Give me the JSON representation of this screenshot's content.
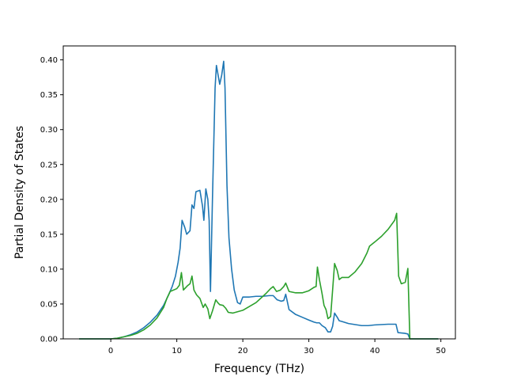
{
  "chart_data": {
    "type": "line",
    "title": "",
    "xlabel": "Frequency (THz)",
    "ylabel": "Partial Density of States",
    "xlim": [
      -7.2,
      52.2
    ],
    "ylim": [
      0,
      0.42
    ],
    "xticks": [
      0,
      10,
      20,
      30,
      40,
      50
    ],
    "xtick_labels": [
      "0",
      "10",
      "20",
      "30",
      "40",
      "50"
    ],
    "yticks": [
      0,
      0.05,
      0.1,
      0.15,
      0.2,
      0.25,
      0.3,
      0.35,
      0.4
    ],
    "ytick_labels": [
      "0.00",
      "0.05",
      "0.10",
      "0.15",
      "0.20",
      "0.25",
      "0.30",
      "0.35",
      "0.40"
    ],
    "grid": false,
    "legend": "none",
    "series": [
      {
        "color": "#1f77b4",
        "points": [
          [
            -4.8,
            0
          ],
          [
            0,
            0
          ],
          [
            1,
            0.001
          ],
          [
            2,
            0.003
          ],
          [
            3,
            0.006
          ],
          [
            4,
            0.01
          ],
          [
            5,
            0.016
          ],
          [
            6,
            0.024
          ],
          [
            7,
            0.034
          ],
          [
            8,
            0.048
          ],
          [
            8.8,
            0.064
          ],
          [
            9.3,
            0.075
          ],
          [
            9.8,
            0.09
          ],
          [
            10.2,
            0.11
          ],
          [
            10.5,
            0.13
          ],
          [
            10.8,
            0.17
          ],
          [
            11.2,
            0.16
          ],
          [
            11.5,
            0.15
          ],
          [
            12,
            0.155
          ],
          [
            12.3,
            0.192
          ],
          [
            12.6,
            0.187
          ],
          [
            12.9,
            0.211
          ],
          [
            13.5,
            0.213
          ],
          [
            13.9,
            0.19
          ],
          [
            14.1,
            0.17
          ],
          [
            14.4,
            0.215
          ],
          [
            14.7,
            0.2
          ],
          [
            14.9,
            0.17
          ],
          [
            15.1,
            0.068
          ],
          [
            15.4,
            0.2
          ],
          [
            15.8,
            0.36
          ],
          [
            16,
            0.392
          ],
          [
            16.5,
            0.365
          ],
          [
            16.8,
            0.378
          ],
          [
            17.1,
            0.398
          ],
          [
            17.3,
            0.36
          ],
          [
            17.6,
            0.22
          ],
          [
            17.9,
            0.145
          ],
          [
            18.3,
            0.1
          ],
          [
            18.7,
            0.07
          ],
          [
            19.2,
            0.052
          ],
          [
            19.6,
            0.05
          ],
          [
            20,
            0.06
          ],
          [
            21,
            0.06
          ],
          [
            22,
            0.061
          ],
          [
            23,
            0.061
          ],
          [
            24,
            0.062
          ],
          [
            24.6,
            0.062
          ],
          [
            25.2,
            0.056
          ],
          [
            25.8,
            0.054
          ],
          [
            26.2,
            0.055
          ],
          [
            26.5,
            0.064
          ],
          [
            27,
            0.042
          ],
          [
            28,
            0.035
          ],
          [
            29,
            0.031
          ],
          [
            30,
            0.027
          ],
          [
            30.8,
            0.024
          ],
          [
            31.2,
            0.023
          ],
          [
            31.6,
            0.023
          ],
          [
            32,
            0.019
          ],
          [
            32.5,
            0.016
          ],
          [
            32.9,
            0.01
          ],
          [
            33.3,
            0.01
          ],
          [
            33.6,
            0.018
          ],
          [
            33.9,
            0.037
          ],
          [
            34.3,
            0.031
          ],
          [
            34.6,
            0.026
          ],
          [
            35,
            0.025
          ],
          [
            36,
            0.022
          ],
          [
            38,
            0.019
          ],
          [
            39,
            0.019
          ],
          [
            40,
            0.02
          ],
          [
            42,
            0.021
          ],
          [
            43.2,
            0.021
          ],
          [
            43.5,
            0.009
          ],
          [
            44.5,
            0.008
          ],
          [
            45,
            0.007
          ],
          [
            45.3,
            0
          ],
          [
            49.6,
            0
          ]
        ]
      },
      {
        "color": "#2ca02c",
        "points": [
          [
            -4.8,
            0
          ],
          [
            0,
            0
          ],
          [
            1,
            0.001
          ],
          [
            2,
            0.003
          ],
          [
            3,
            0.005
          ],
          [
            4,
            0.008
          ],
          [
            5,
            0.013
          ],
          [
            6,
            0.02
          ],
          [
            7,
            0.03
          ],
          [
            8,
            0.045
          ],
          [
            8.5,
            0.058
          ],
          [
            9,
            0.068
          ],
          [
            10,
            0.072
          ],
          [
            10.4,
            0.077
          ],
          [
            10.7,
            0.095
          ],
          [
            11,
            0.07
          ],
          [
            11.6,
            0.076
          ],
          [
            12,
            0.079
          ],
          [
            12.3,
            0.09
          ],
          [
            12.6,
            0.07
          ],
          [
            13,
            0.063
          ],
          [
            13.5,
            0.058
          ],
          [
            14,
            0.045
          ],
          [
            14.3,
            0.05
          ],
          [
            14.7,
            0.043
          ],
          [
            15,
            0.029
          ],
          [
            15.4,
            0.04
          ],
          [
            15.9,
            0.056
          ],
          [
            16.2,
            0.052
          ],
          [
            16.5,
            0.049
          ],
          [
            17,
            0.048
          ],
          [
            17.4,
            0.044
          ],
          [
            17.8,
            0.038
          ],
          [
            18.5,
            0.037
          ],
          [
            20,
            0.041
          ],
          [
            22,
            0.052
          ],
          [
            23.5,
            0.065
          ],
          [
            24.2,
            0.072
          ],
          [
            24.6,
            0.075
          ],
          [
            25.1,
            0.068
          ],
          [
            25.7,
            0.07
          ],
          [
            26.2,
            0.075
          ],
          [
            26.5,
            0.08
          ],
          [
            27,
            0.068
          ],
          [
            28,
            0.066
          ],
          [
            29,
            0.066
          ],
          [
            30,
            0.069
          ],
          [
            30.8,
            0.074
          ],
          [
            31.1,
            0.075
          ],
          [
            31.3,
            0.103
          ],
          [
            31.6,
            0.085
          ],
          [
            32,
            0.065
          ],
          [
            32.3,
            0.048
          ],
          [
            32.6,
            0.042
          ],
          [
            32.9,
            0.029
          ],
          [
            33.3,
            0.032
          ],
          [
            33.6,
            0.07
          ],
          [
            33.9,
            0.108
          ],
          [
            34.3,
            0.098
          ],
          [
            34.6,
            0.085
          ],
          [
            35,
            0.088
          ],
          [
            36,
            0.088
          ],
          [
            37,
            0.096
          ],
          [
            38,
            0.108
          ],
          [
            38.8,
            0.123
          ],
          [
            39.2,
            0.133
          ],
          [
            40,
            0.139
          ],
          [
            41,
            0.147
          ],
          [
            42,
            0.157
          ],
          [
            43,
            0.17
          ],
          [
            43.3,
            0.18
          ],
          [
            43.6,
            0.09
          ],
          [
            44,
            0.079
          ],
          [
            44.6,
            0.081
          ],
          [
            45,
            0.101
          ],
          [
            45.3,
            0
          ],
          [
            49.6,
            0
          ]
        ]
      }
    ]
  }
}
